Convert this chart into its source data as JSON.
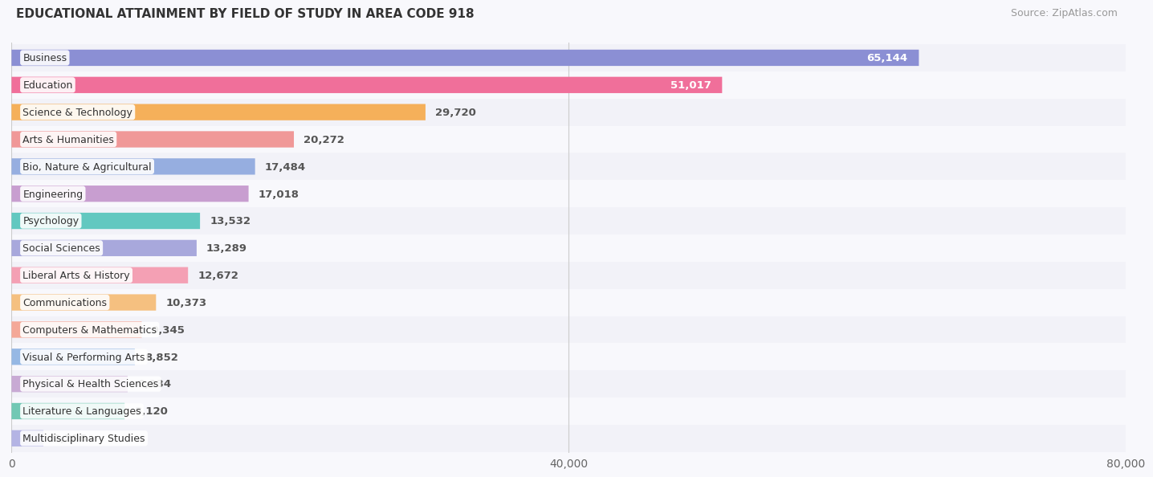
{
  "title": "EDUCATIONAL ATTAINMENT BY FIELD OF STUDY IN AREA CODE 918",
  "source": "Source: ZipAtlas.com",
  "categories": [
    "Business",
    "Education",
    "Science & Technology",
    "Arts & Humanities",
    "Bio, Nature & Agricultural",
    "Engineering",
    "Psychology",
    "Social Sciences",
    "Liberal Arts & History",
    "Communications",
    "Computers & Mathematics",
    "Visual & Performing Arts",
    "Physical & Health Sciences",
    "Literature & Languages",
    "Multidisciplinary Studies"
  ],
  "values": [
    65144,
    51017,
    29720,
    20272,
    17484,
    17018,
    13532,
    13289,
    12672,
    10373,
    9345,
    8852,
    8334,
    8120,
    2286
  ],
  "bar_colors": [
    "#8b8fd4",
    "#f06f9a",
    "#f5b05a",
    "#f09898",
    "#96aee0",
    "#c89ed0",
    "#62c8c0",
    "#a8a8dc",
    "#f4a0b4",
    "#f5c080",
    "#f4a898",
    "#96b8e4",
    "#c8aad4",
    "#72c8b4",
    "#b4b4e4"
  ],
  "row_colors": [
    "#f2f2f8",
    "#f8f8fc"
  ],
  "background_color": "#f8f8fc",
  "xlim": [
    0,
    80000
  ],
  "xticks": [
    0,
    40000,
    80000
  ],
  "xticklabels": [
    "0",
    "40,000",
    "80,000"
  ],
  "value_label_threshold": 40000
}
